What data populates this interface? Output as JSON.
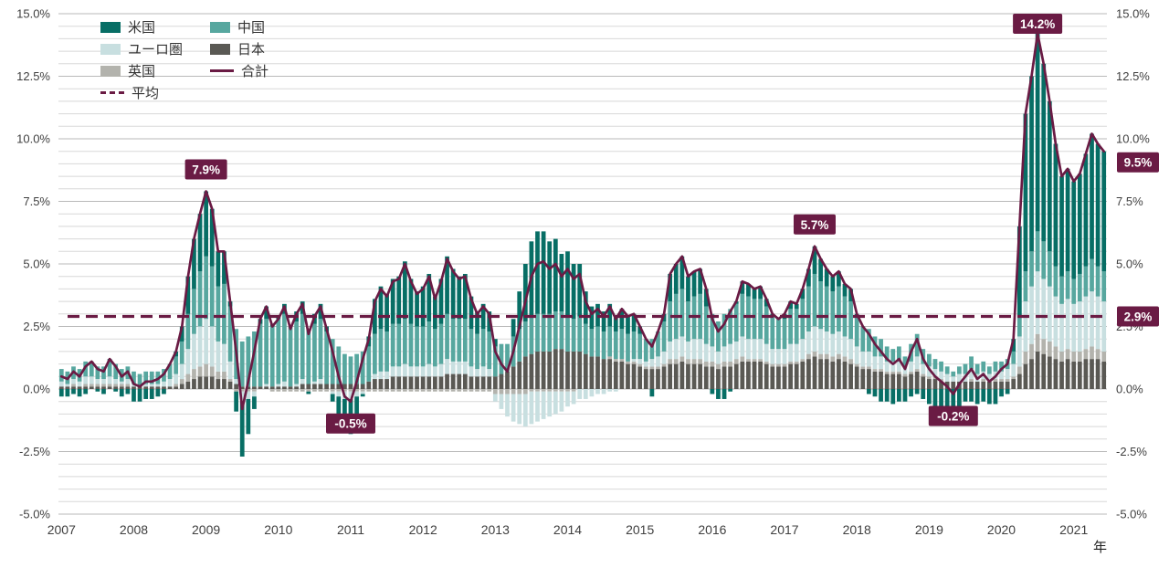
{
  "x_axis_unit": "年",
  "chart_data": {
    "type": "bar",
    "subtype": "stacked-monthly-bars-with-total-line",
    "title": "",
    "ylim": [
      -5,
      15
    ],
    "y_major_step": 2.5,
    "y_minor_step": 0.5,
    "y_tick_labels": [
      "15.0%",
      "12.5%",
      "10.0%",
      "7.5%",
      "5.0%",
      "2.5%",
      "0.0%",
      "-2.5%",
      "-5.0%"
    ],
    "x_tick_labels": [
      "2007",
      "2008",
      "2009",
      "2010",
      "2011",
      "2012",
      "2013",
      "2014",
      "2015",
      "2016",
      "2017",
      "2018",
      "2019",
      "2020",
      "2021"
    ],
    "x_unit_label": "年",
    "months_start": "2007-01",
    "average_value": 2.9,
    "colors": {
      "us": "#076e65",
      "eurozone": "#c8dfe0",
      "uk": "#b3b3ad",
      "china": "#57a79f",
      "japan": "#5a5954",
      "total": "#6a1b44",
      "grid_minor": "#d8d8d8",
      "grid_major": "#b9b9b9",
      "axis_text": "#3f3f3f"
    },
    "stack_order_bottom_to_top": [
      "japan",
      "uk",
      "eurozone",
      "china",
      "us"
    ],
    "series": [
      {
        "key": "us",
        "name": "米国",
        "type": "bar",
        "color": "#076e65",
        "values": [
          -0.3,
          -0.3,
          -0.2,
          -0.3,
          -0.2,
          0.0,
          -0.1,
          -0.2,
          0.1,
          -0.1,
          -0.3,
          -0.2,
          -0.5,
          -0.5,
          -0.4,
          -0.4,
          -0.3,
          -0.2,
          0.0,
          0.2,
          0.6,
          1.5,
          2.0,
          2.3,
          2.6,
          2.3,
          1.4,
          1.3,
          0.2,
          -0.8,
          -2.2,
          -1.4,
          -0.5,
          0.2,
          0.5,
          0.1,
          0.1,
          0.4,
          0.0,
          0.4,
          0.5,
          -0.1,
          0.4,
          0.6,
          0.2,
          -0.3,
          -0.9,
          -1.3,
          -1.4,
          -0.8,
          -0.1,
          0.4,
          1.4,
          1.7,
          1.5,
          1.8,
          1.9,
          2.3,
          1.8,
          1.4,
          1.6,
          1.9,
          1.3,
          1.8,
          2.3,
          2.0,
          1.7,
          1.8,
          1.3,
          0.9,
          1.0,
          0.8,
          0.3,
          0.0,
          0.0,
          0.7,
          1.5,
          2.3,
          3.0,
          3.3,
          3.3,
          2.9,
          2.9,
          2.3,
          2.6,
          2.2,
          2.1,
          1.3,
          0.9,
          0.9,
          0.8,
          0.9,
          0.6,
          0.8,
          0.7,
          0.7,
          0.3,
          0.0,
          -0.3,
          0.0,
          0.3,
          1.1,
          1.2,
          1.3,
          1.0,
          1.0,
          1.0,
          0.7,
          -0.2,
          -0.4,
          -0.4,
          -0.1,
          0.1,
          0.5,
          0.5,
          0.4,
          0.5,
          0.3,
          0.1,
          0.0,
          0.2,
          0.3,
          0.2,
          0.4,
          0.7,
          1.1,
          0.9,
          0.7,
          0.6,
          0.6,
          0.5,
          0.5,
          0.1,
          0.0,
          -0.2,
          -0.3,
          -0.5,
          -0.5,
          -0.6,
          -0.5,
          -0.5,
          -0.3,
          -0.2,
          -0.4,
          -0.6,
          -0.7,
          -0.8,
          -0.8,
          -0.9,
          -0.7,
          -0.5,
          -0.5,
          -0.6,
          -0.5,
          -0.6,
          -0.6,
          -0.3,
          -0.2,
          0.5,
          3.6,
          6.3,
          7.0,
          7.9,
          7.1,
          6.0,
          4.9,
          4.0,
          4.1,
          3.9,
          4.0,
          4.5,
          5.0,
          4.9,
          4.8
        ]
      },
      {
        "key": "eurozone",
        "name": "ユーロ圏",
        "type": "bar",
        "color": "#c8dfe0",
        "values": [
          0.2,
          0.1,
          0.2,
          0.2,
          0.3,
          0.3,
          0.2,
          0.2,
          0.3,
          0.2,
          0.1,
          0.2,
          0.1,
          0.0,
          0.1,
          0.1,
          0.1,
          0.2,
          0.3,
          0.4,
          0.6,
          1.0,
          1.4,
          1.6,
          1.8,
          1.6,
          1.2,
          1.1,
          0.7,
          0.2,
          -0.4,
          -0.3,
          -0.2,
          0.0,
          0.1,
          0.0,
          0.1,
          0.2,
          0.0,
          0.1,
          0.2,
          0.0,
          0.1,
          0.2,
          0.0,
          -0.1,
          -0.2,
          -0.3,
          -0.3,
          -0.2,
          -0.1,
          0.0,
          0.2,
          0.3,
          0.3,
          0.4,
          0.4,
          0.5,
          0.4,
          0.4,
          0.4,
          0.5,
          0.4,
          0.5,
          0.6,
          0.5,
          0.5,
          0.5,
          0.4,
          0.3,
          0.4,
          0.3,
          -0.3,
          -0.6,
          -0.9,
          -1.1,
          -1.2,
          -1.3,
          -1.3,
          -1.2,
          -1.1,
          -1.0,
          -0.9,
          -0.8,
          -0.6,
          -0.5,
          -0.4,
          -0.4,
          -0.3,
          -0.2,
          -0.2,
          -0.1,
          -0.1,
          0.0,
          0.0,
          0.1,
          0.2,
          0.2,
          0.3,
          0.4,
          0.5,
          0.7,
          0.8,
          0.8,
          0.7,
          0.8,
          0.8,
          0.7,
          0.6,
          0.5,
          0.6,
          0.7,
          0.7,
          0.8,
          0.8,
          0.8,
          0.8,
          0.7,
          0.6,
          0.6,
          0.6,
          0.7,
          0.7,
          0.8,
          0.9,
          1.0,
          1.0,
          0.9,
          0.9,
          0.9,
          0.8,
          0.8,
          0.7,
          0.6,
          0.6,
          0.5,
          0.5,
          0.4,
          0.4,
          0.4,
          0.3,
          0.4,
          0.5,
          0.4,
          0.4,
          0.3,
          0.3,
          0.3,
          0.2,
          0.3,
          0.3,
          0.4,
          0.3,
          0.3,
          0.3,
          0.3,
          0.3,
          0.4,
          0.5,
          1.2,
          2.0,
          2.3,
          2.5,
          2.4,
          2.2,
          2.0,
          1.9,
          2.0,
          1.9,
          2.0,
          2.1,
          2.2,
          2.1,
          2.0
        ]
      },
      {
        "key": "uk",
        "name": "英国",
        "type": "bar",
        "color": "#b3b3ad",
        "values": [
          0.0,
          0.0,
          0.1,
          0.0,
          0.1,
          0.1,
          0.1,
          0.1,
          0.1,
          0.1,
          0.1,
          0.1,
          0.0,
          0.0,
          0.0,
          0.0,
          0.0,
          0.0,
          0.0,
          0.1,
          0.2,
          0.3,
          0.4,
          0.4,
          0.5,
          0.4,
          0.3,
          0.3,
          0.1,
          -0.1,
          -0.1,
          -0.1,
          -0.1,
          0.0,
          0.0,
          -0.1,
          -0.1,
          -0.1,
          -0.1,
          -0.1,
          -0.1,
          -0.1,
          -0.1,
          -0.1,
          -0.1,
          -0.1,
          -0.1,
          -0.1,
          -0.1,
          -0.1,
          -0.1,
          -0.1,
          -0.1,
          -0.1,
          -0.1,
          -0.1,
          -0.1,
          -0.1,
          -0.1,
          -0.1,
          -0.1,
          -0.1,
          -0.1,
          -0.1,
          -0.1,
          -0.1,
          -0.1,
          -0.1,
          -0.1,
          -0.1,
          -0.1,
          -0.1,
          -0.2,
          -0.2,
          -0.2,
          -0.2,
          -0.2,
          -0.2,
          -0.1,
          -0.1,
          -0.1,
          -0.1,
          -0.1,
          -0.1,
          -0.1,
          -0.1,
          0.0,
          0.0,
          0.0,
          0.0,
          0.0,
          0.1,
          0.1,
          0.1,
          0.1,
          0.1,
          0.1,
          0.1,
          0.1,
          0.1,
          0.1,
          0.2,
          0.2,
          0.2,
          0.2,
          0.2,
          0.2,
          0.2,
          0.2,
          0.2,
          0.2,
          0.2,
          0.2,
          0.2,
          0.1,
          0.1,
          0.1,
          0.1,
          0.1,
          0.1,
          0.1,
          0.1,
          0.1,
          0.1,
          0.2,
          0.2,
          0.2,
          0.2,
          0.2,
          0.2,
          0.2,
          0.2,
          0.1,
          0.1,
          0.1,
          0.1,
          0.1,
          0.1,
          0.1,
          0.1,
          0.1,
          0.1,
          0.1,
          0.1,
          0.1,
          0.1,
          0.1,
          0.0,
          0.0,
          0.0,
          0.0,
          0.1,
          0.0,
          0.1,
          0.0,
          0.1,
          0.1,
          0.1,
          0.1,
          0.3,
          0.5,
          0.6,
          0.7,
          0.6,
          0.6,
          0.5,
          0.4,
          0.4,
          0.4,
          0.4,
          0.4,
          0.5,
          0.4,
          0.4
        ]
      },
      {
        "key": "china",
        "name": "中国",
        "type": "bar",
        "color": "#57a79f",
        "values": [
          0.5,
          0.5,
          0.5,
          0.5,
          0.6,
          0.6,
          0.5,
          0.5,
          0.6,
          0.6,
          0.5,
          0.5,
          0.5,
          0.5,
          0.5,
          0.5,
          0.5,
          0.5,
          0.6,
          0.7,
          0.9,
          1.4,
          1.8,
          2.2,
          2.5,
          2.4,
          2.2,
          2.4,
          2.2,
          2.0,
          1.8,
          2.0,
          2.2,
          2.5,
          2.6,
          2.4,
          2.6,
          2.7,
          2.4,
          2.5,
          2.6,
          2.2,
          2.3,
          2.4,
          2.1,
          1.8,
          1.5,
          1.2,
          1.1,
          1.2,
          1.3,
          1.4,
          1.6,
          1.7,
          1.6,
          1.7,
          1.7,
          1.8,
          1.7,
          1.6,
          1.6,
          1.7,
          1.5,
          1.6,
          1.8,
          1.7,
          1.7,
          1.7,
          1.5,
          1.4,
          1.5,
          1.5,
          1.2,
          1.2,
          1.1,
          1.2,
          1.3,
          1.4,
          1.5,
          1.5,
          1.5,
          1.5,
          1.5,
          1.5,
          1.4,
          1.3,
          1.4,
          1.2,
          1.1,
          1.2,
          1.1,
          1.2,
          1.1,
          1.2,
          1.1,
          1.1,
          1.0,
          0.9,
          0.8,
          1.0,
          1.2,
          1.6,
          1.8,
          1.9,
          1.6,
          1.7,
          1.8,
          1.5,
          1.3,
          1.2,
          1.3,
          1.4,
          1.5,
          1.7,
          1.7,
          1.6,
          1.6,
          1.5,
          1.3,
          1.2,
          1.2,
          1.4,
          1.4,
          1.6,
          1.8,
          2.1,
          1.9,
          1.8,
          1.7,
          1.8,
          1.6,
          1.5,
          1.2,
          1.0,
          0.9,
          0.8,
          0.7,
          0.6,
          0.5,
          0.6,
          0.4,
          0.7,
          0.9,
          0.6,
          0.5,
          0.4,
          0.4,
          0.3,
          0.2,
          0.3,
          0.4,
          0.5,
          0.4,
          0.4,
          0.3,
          0.4,
          0.4,
          0.4,
          0.5,
          0.8,
          1.2,
          1.4,
          1.6,
          1.5,
          1.4,
          1.2,
          1.1,
          1.1,
          1.0,
          1.1,
          1.2,
          1.3,
          1.2,
          1.2
        ]
      },
      {
        "key": "japan",
        "name": "日本",
        "type": "bar",
        "color": "#5a5954",
        "values": [
          0.1,
          0.1,
          0.1,
          0.1,
          0.1,
          0.1,
          0.1,
          0.1,
          0.1,
          0.1,
          0.1,
          0.1,
          0.1,
          0.1,
          0.1,
          0.1,
          0.1,
          0.1,
          0.1,
          0.1,
          0.2,
          0.3,
          0.4,
          0.5,
          0.5,
          0.5,
          0.4,
          0.4,
          0.3,
          0.2,
          0.1,
          0.1,
          0.1,
          0.1,
          0.1,
          0.1,
          0.1,
          0.1,
          0.1,
          0.1,
          0.2,
          0.2,
          0.2,
          0.2,
          0.2,
          0.2,
          0.2,
          0.2,
          0.2,
          0.2,
          0.2,
          0.3,
          0.4,
          0.4,
          0.4,
          0.5,
          0.5,
          0.5,
          0.5,
          0.5,
          0.5,
          0.5,
          0.5,
          0.5,
          0.6,
          0.6,
          0.6,
          0.6,
          0.5,
          0.5,
          0.5,
          0.5,
          0.5,
          0.6,
          0.7,
          0.9,
          1.1,
          1.3,
          1.4,
          1.5,
          1.5,
          1.5,
          1.6,
          1.6,
          1.5,
          1.5,
          1.5,
          1.4,
          1.3,
          1.3,
          1.2,
          1.2,
          1.1,
          1.1,
          1.0,
          1.0,
          0.9,
          0.8,
          0.8,
          0.8,
          0.9,
          1.0,
          1.0,
          1.1,
          1.0,
          1.0,
          1.0,
          0.9,
          0.9,
          0.8,
          0.9,
          0.9,
          1.0,
          1.1,
          1.1,
          1.1,
          1.1,
          1.0,
          0.9,
          0.9,
          0.9,
          1.0,
          1.0,
          1.1,
          1.2,
          1.3,
          1.2,
          1.2,
          1.1,
          1.2,
          1.1,
          1.0,
          0.9,
          0.8,
          0.8,
          0.7,
          0.7,
          0.6,
          0.6,
          0.6,
          0.5,
          0.6,
          0.7,
          0.5,
          0.4,
          0.4,
          0.3,
          0.3,
          0.3,
          0.3,
          0.3,
          0.3,
          0.3,
          0.3,
          0.3,
          0.3,
          0.3,
          0.3,
          0.4,
          0.6,
          1.0,
          1.2,
          1.5,
          1.4,
          1.3,
          1.2,
          1.1,
          1.2,
          1.1,
          1.1,
          1.2,
          1.2,
          1.2,
          1.1
        ]
      },
      {
        "key": "total",
        "name": "合計",
        "type": "line",
        "color": "#6a1b44",
        "values": [
          0.5,
          0.4,
          0.7,
          0.5,
          0.9,
          1.1,
          0.8,
          0.7,
          1.2,
          0.9,
          0.5,
          0.7,
          0.2,
          0.1,
          0.3,
          0.3,
          0.4,
          0.6,
          1.0,
          1.5,
          2.5,
          4.5,
          6.0,
          7.0,
          7.9,
          7.2,
          5.5,
          5.5,
          3.5,
          1.5,
          -0.8,
          0.3,
          1.5,
          2.8,
          3.3,
          2.5,
          2.8,
          3.3,
          2.4,
          3.0,
          3.4,
          2.2,
          2.9,
          3.3,
          2.4,
          1.5,
          0.5,
          -0.3,
          -0.5,
          0.3,
          1.2,
          2.0,
          3.5,
          4.0,
          3.7,
          4.3,
          4.4,
          5.0,
          4.3,
          3.8,
          4.0,
          4.5,
          3.6,
          4.3,
          5.2,
          4.7,
          4.4,
          4.5,
          3.6,
          3.0,
          3.3,
          3.0,
          1.5,
          1.0,
          0.7,
          1.5,
          2.5,
          3.5,
          4.5,
          5.0,
          5.1,
          4.8,
          5.0,
          4.5,
          4.8,
          4.4,
          4.6,
          3.5,
          3.0,
          3.2,
          2.9,
          3.3,
          2.8,
          3.2,
          2.9,
          3.0,
          2.5,
          2.0,
          1.7,
          2.3,
          3.0,
          4.6,
          5.0,
          5.3,
          4.5,
          4.7,
          4.8,
          4.0,
          2.8,
          2.3,
          2.6,
          3.1,
          3.5,
          4.3,
          4.2,
          4.0,
          4.1,
          3.6,
          3.0,
          2.8,
          3.0,
          3.5,
          3.4,
          4.0,
          4.8,
          5.7,
          5.2,
          4.8,
          4.5,
          4.7,
          4.2,
          4.0,
          3.0,
          2.5,
          2.2,
          1.8,
          1.5,
          1.2,
          1.0,
          1.2,
          0.8,
          1.5,
          2.0,
          1.2,
          0.8,
          0.5,
          0.3,
          0.1,
          -0.2,
          0.2,
          0.5,
          0.8,
          0.4,
          0.6,
          0.3,
          0.5,
          0.8,
          1.0,
          2.0,
          6.5,
          11.0,
          12.5,
          14.2,
          13.0,
          11.5,
          9.8,
          8.5,
          8.8,
          8.3,
          8.6,
          9.4,
          10.2,
          9.8,
          9.5
        ]
      },
      {
        "key": "average",
        "name": "平均",
        "type": "dashed-line",
        "color": "#6a1b44",
        "value": 2.9
      }
    ],
    "legend": {
      "columns": [
        [
          {
            "label": "米国",
            "swatch": "rect",
            "color": "#076e65"
          },
          {
            "label": "ユーロ圏",
            "swatch": "rect",
            "color": "#c8dfe0"
          },
          {
            "label": "英国",
            "swatch": "rect",
            "color": "#b3b3ad"
          },
          {
            "label": "平均",
            "swatch": "dashed-line",
            "color": "#6a1b44"
          }
        ],
        [
          {
            "label": "中国",
            "swatch": "rect",
            "color": "#57a79f"
          },
          {
            "label": "日本",
            "swatch": "rect",
            "color": "#5a5954"
          },
          {
            "label": "合計",
            "swatch": "solid-line",
            "color": "#6a1b44"
          }
        ]
      ]
    },
    "annotations": [
      {
        "label": "7.9%",
        "month_index": 24,
        "placement": "above"
      },
      {
        "label": "-0.5%",
        "month_index": 48,
        "placement": "below"
      },
      {
        "label": "5.7%",
        "month_index": 125,
        "placement": "above"
      },
      {
        "label": "-0.2%",
        "month_index": 148,
        "placement": "below"
      },
      {
        "label": "14.2%",
        "month_index": 162,
        "placement": "above"
      },
      {
        "label": "9.5%",
        "month_index": 173,
        "placement": "right"
      },
      {
        "label": "2.9%",
        "value": 2.9,
        "placement": "right"
      }
    ]
  }
}
